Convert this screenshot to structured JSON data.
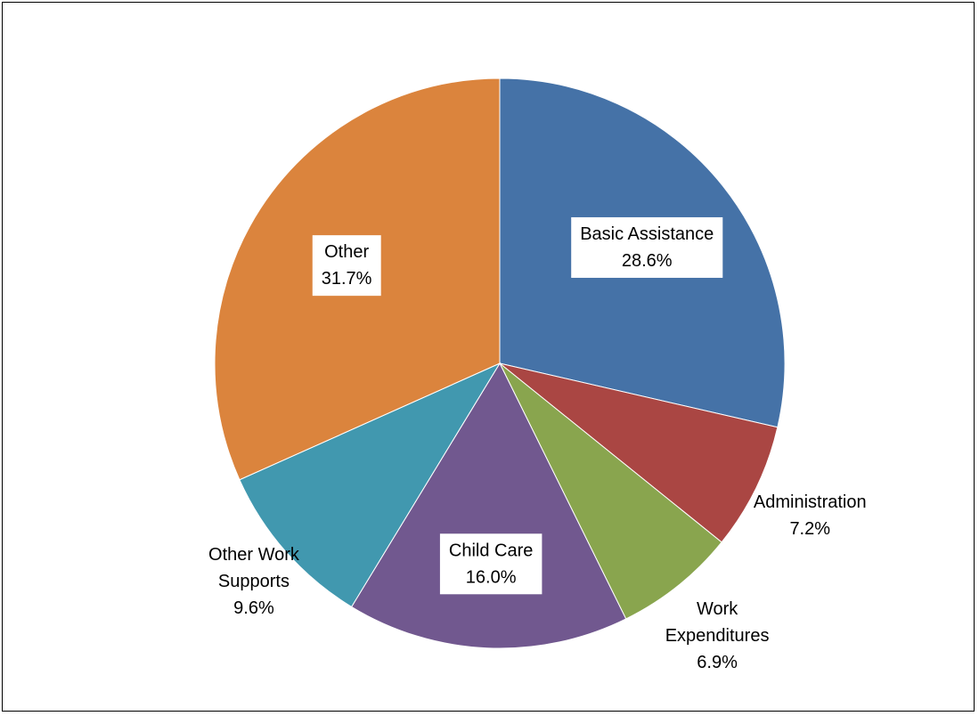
{
  "chart_data": {
    "type": "pie",
    "title": "",
    "start_angle_deg": 0,
    "direction": "clockwise",
    "slices": [
      {
        "label_lines": [
          "Basic Assistance"
        ],
        "value": 28.6,
        "value_label": "28.6%",
        "color": "#4572A7",
        "label_box": true
      },
      {
        "label_lines": [
          "Administration"
        ],
        "value": 7.2,
        "value_label": "7.2%",
        "color": "#AA4643",
        "label_box": false
      },
      {
        "label_lines": [
          "Work",
          "Expenditures"
        ],
        "value": 6.9,
        "value_label": "6.9%",
        "color": "#89A54E",
        "label_box": false
      },
      {
        "label_lines": [
          "Child Care"
        ],
        "value": 16.0,
        "value_label": "16.0%",
        "color": "#71588F",
        "label_box": true
      },
      {
        "label_lines": [
          "Other Work",
          "Supports"
        ],
        "value": 9.6,
        "value_label": "9.6%",
        "color": "#4198AF",
        "label_box": false
      },
      {
        "label_lines": [
          "Other"
        ],
        "value": 31.7,
        "value_label": "31.7%",
        "color": "#DB843D",
        "label_box": true
      }
    ]
  }
}
